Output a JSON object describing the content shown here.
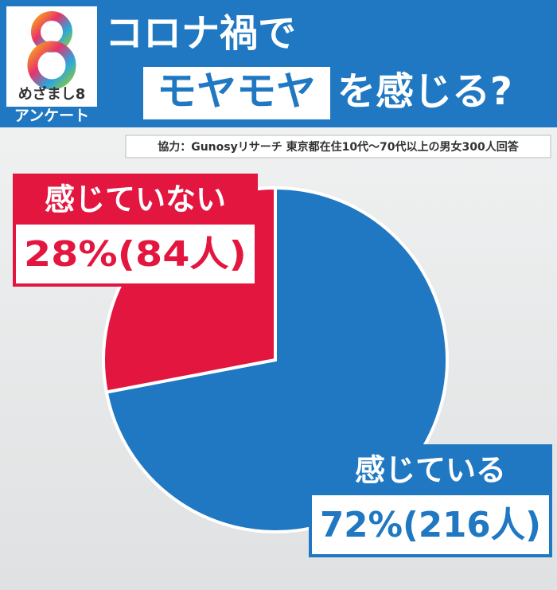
{
  "chart_data": {
    "type": "pie",
    "logo": "めざまし8",
    "logo_sub": "アンケート",
    "title": "コロナ禍で",
    "title_highlight": "モヤモヤ",
    "title_end": "を感じる?",
    "source": "協力：Gunosyリサーチ 東京都在住10代〜70代以上の男女300人回答",
    "categories": [
      "感じている",
      "感じていない"
    ],
    "values": [
      72,
      28
    ],
    "value_labels": [
      "72%(216人)",
      "28%(84人)"
    ],
    "colors": [
      "#1f78c1",
      "#e3163f"
    ]
  }
}
